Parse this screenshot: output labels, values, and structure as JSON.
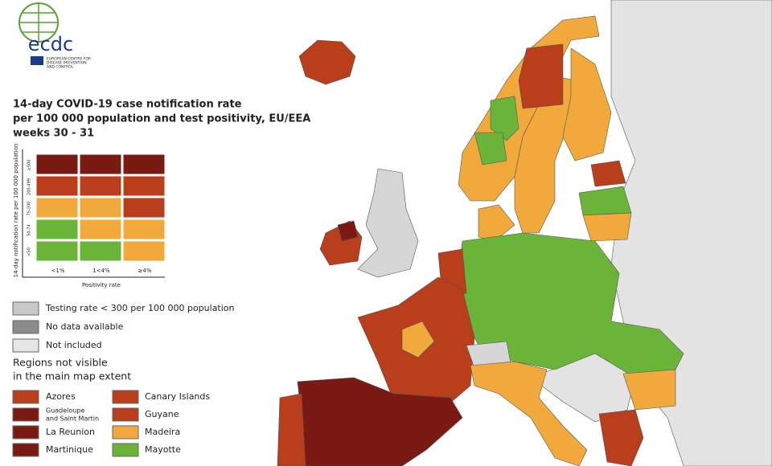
{
  "header": {
    "logo_text": "ecdc",
    "logo_subtitle": [
      "EUROPEAN CENTRE FOR",
      "DISEASE PREVENTION",
      "AND CONTROL"
    ]
  },
  "title": [
    "14-day COVID-19 case notification rate",
    "per 100 000 population and test positivity, EU/EEA",
    "weeks 30 - 31"
  ],
  "matrix": {
    "y_label": "14-day notification rate per 100 000 population",
    "x_label": "Positivity rate",
    "columns": [
      "<1%",
      "1<4%",
      "≥4%"
    ],
    "rows": [
      {
        "label": "≥500",
        "colors": [
          "#7b1a12",
          "#7b1a12",
          "#7b1a12"
        ]
      },
      {
        "label": "200-499",
        "colors": [
          "#b83e1c",
          "#b83e1c",
          "#b83e1c"
        ]
      },
      {
        "label": "75-200",
        "colors": [
          "#f2a93b",
          "#f2a93b",
          "#b83e1c"
        ]
      },
      {
        "label": "50-74",
        "colors": [
          "#6ab539",
          "#f2a93b",
          "#f2a93b"
        ]
      },
      {
        "label": "<50",
        "colors": [
          "#6ab539",
          "#6ab539",
          "#f2a93b"
        ]
      }
    ]
  },
  "legend": [
    {
      "label": "Testing rate < 300 per 100 000 population",
      "color": "#c8c8c8"
    },
    {
      "label": "No data available",
      "color": "#8c8c8c"
    },
    {
      "label": "Not included",
      "color": "#e6e6e6"
    }
  ],
  "regions": {
    "title": [
      "Regions not visible",
      "in the main map extent"
    ],
    "items": [
      {
        "label": [
          "Azores"
        ],
        "color": "#b83e1c"
      },
      {
        "label": [
          "Guadeloupe",
          "and Saint Martin"
        ],
        "color": "#7b1a12"
      },
      {
        "label": [
          "La Reunion"
        ],
        "color": "#7b1a12"
      },
      {
        "label": [
          "Martinique"
        ],
        "color": "#7b1a12"
      },
      {
        "label": [
          "Canary Islands"
        ],
        "color": "#b83e1c"
      },
      {
        "label": [
          "Guyane"
        ],
        "color": "#b83e1c"
      },
      {
        "label": [
          "Madeira"
        ],
        "color": "#f2a93b"
      },
      {
        "label": [
          "Mayotte"
        ],
        "color": "#6ab539"
      }
    ]
  }
}
